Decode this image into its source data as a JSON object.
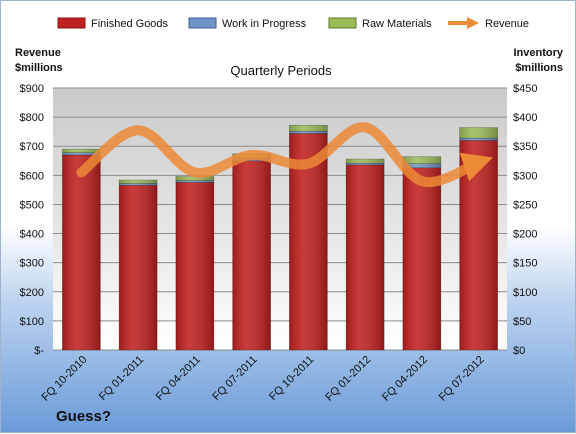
{
  "chart_data": {
    "type": "bar",
    "title": "Quarterly Periods",
    "categories": [
      "FQ 10-2010",
      "FQ 01-2011",
      "FQ 04-2011",
      "FQ 07-2011",
      "FQ 10-2011",
      "FQ 01-2012",
      "FQ 04-2012",
      "FQ 07-2012"
    ],
    "series": [
      {
        "name": "Finished Goods",
        "axis": "right",
        "stacked": true,
        "color": "#c0201f",
        "values": [
          335,
          283,
          288,
          325,
          372,
          318,
          313,
          360
        ]
      },
      {
        "name": "Work in Progress",
        "axis": "right",
        "stacked": true,
        "color": "#6f93c8",
        "values": [
          4,
          3,
          3,
          4,
          4,
          3,
          7,
          4
        ]
      },
      {
        "name": "Raw Materials",
        "axis": "right",
        "stacked": true,
        "color": "#9bbb59",
        "values": [
          6,
          6,
          7,
          8,
          10,
          7,
          12,
          18
        ]
      },
      {
        "name": "Revenue",
        "axis": "left",
        "type": "line",
        "color": "#ec8a36",
        "values": [
          610,
          755,
          610,
          670,
          640,
          765,
          580,
          645
        ]
      }
    ],
    "y_left": {
      "label": "Revenue $millions",
      "ylim": [
        0,
        900
      ],
      "ticks": [
        "$-",
        "$100",
        "$200",
        "$300",
        "$400",
        "$500",
        "$600",
        "$700",
        "$800",
        "$900"
      ]
    },
    "y_right": {
      "label": "Inventory $millions",
      "ylim": [
        0,
        450
      ],
      "ticks": [
        "$0",
        "$50",
        "$100",
        "$150",
        "$200",
        "$250",
        "$300",
        "$350",
        "$400",
        "$450"
      ]
    },
    "grid": true,
    "legend": "top",
    "annotation": "Guess?"
  }
}
